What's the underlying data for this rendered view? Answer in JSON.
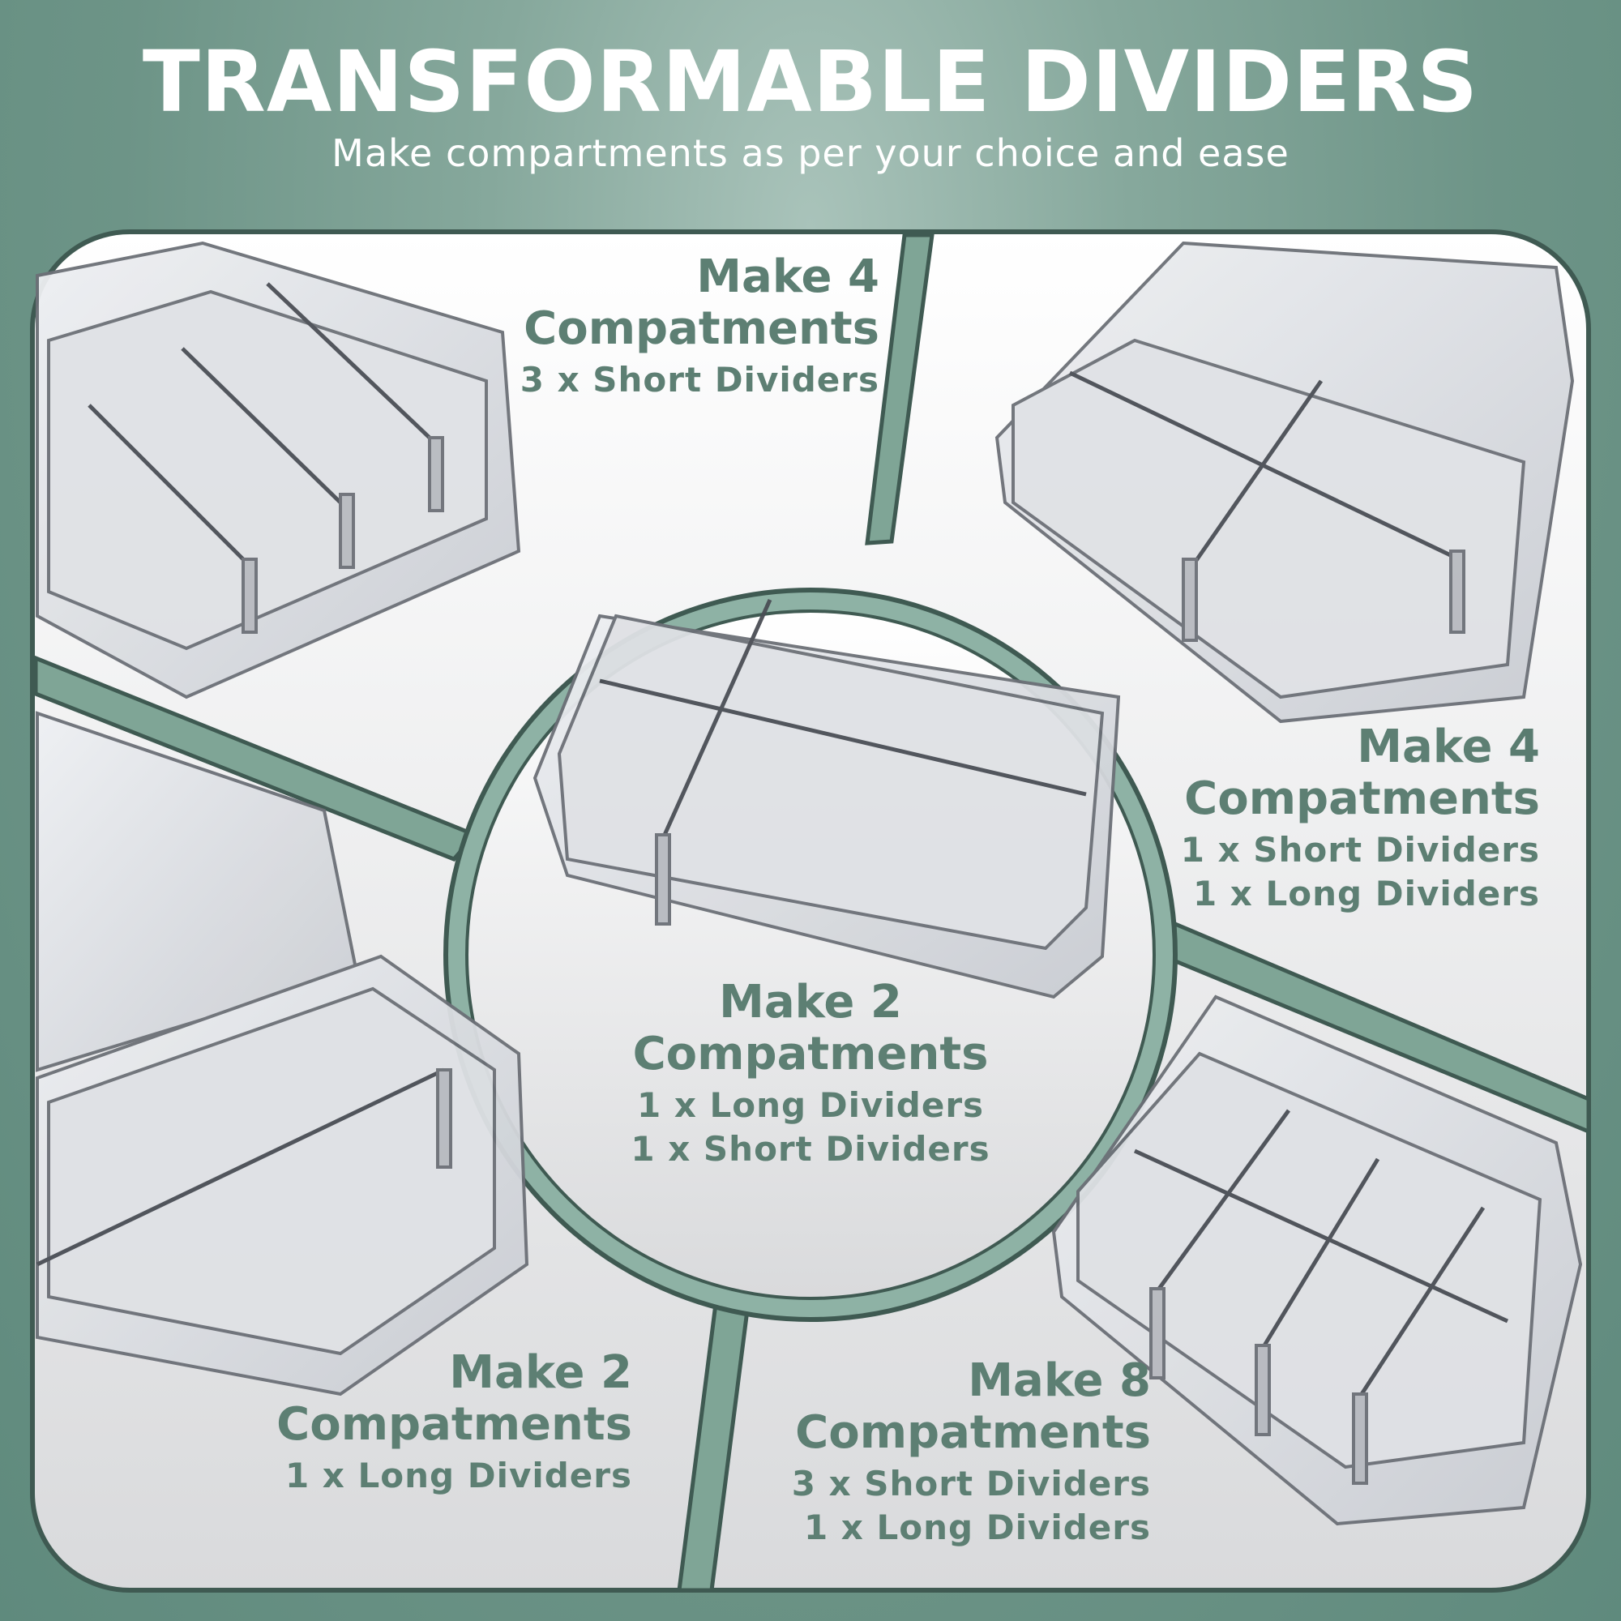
{
  "header": {
    "title": "TRANSFORMABLE DIVIDERS",
    "subtitle": "Make compartments as per your choice and ease"
  },
  "panels": {
    "top_left": {
      "make": "Make",
      "count": "4",
      "word": "Compatments",
      "lines": [
        "3 x Short Dividers"
      ]
    },
    "top_right": {
      "make": "Make",
      "count": "4",
      "word": "Compatments",
      "lines": [
        "1 x Short Dividers",
        "1 x Long Dividers"
      ]
    },
    "center": {
      "make": "Make",
      "count": "2",
      "word": "Compatments",
      "lines": [
        "1 x Long Dividers",
        "1 x Short Dividers"
      ]
    },
    "bottom_left": {
      "make": "Make",
      "count": "2",
      "word": "Compatments",
      "lines": [
        "1 x Long Dividers"
      ]
    },
    "bottom_right": {
      "make": "Make",
      "count": "8",
      "word": "Compatments",
      "lines": [
        "3 x Short Dividers",
        "1 x Long Dividers"
      ]
    }
  },
  "colors": {
    "frame": "#3f5a52",
    "accent_text": "#5d7f73",
    "background": "#6d9487"
  }
}
